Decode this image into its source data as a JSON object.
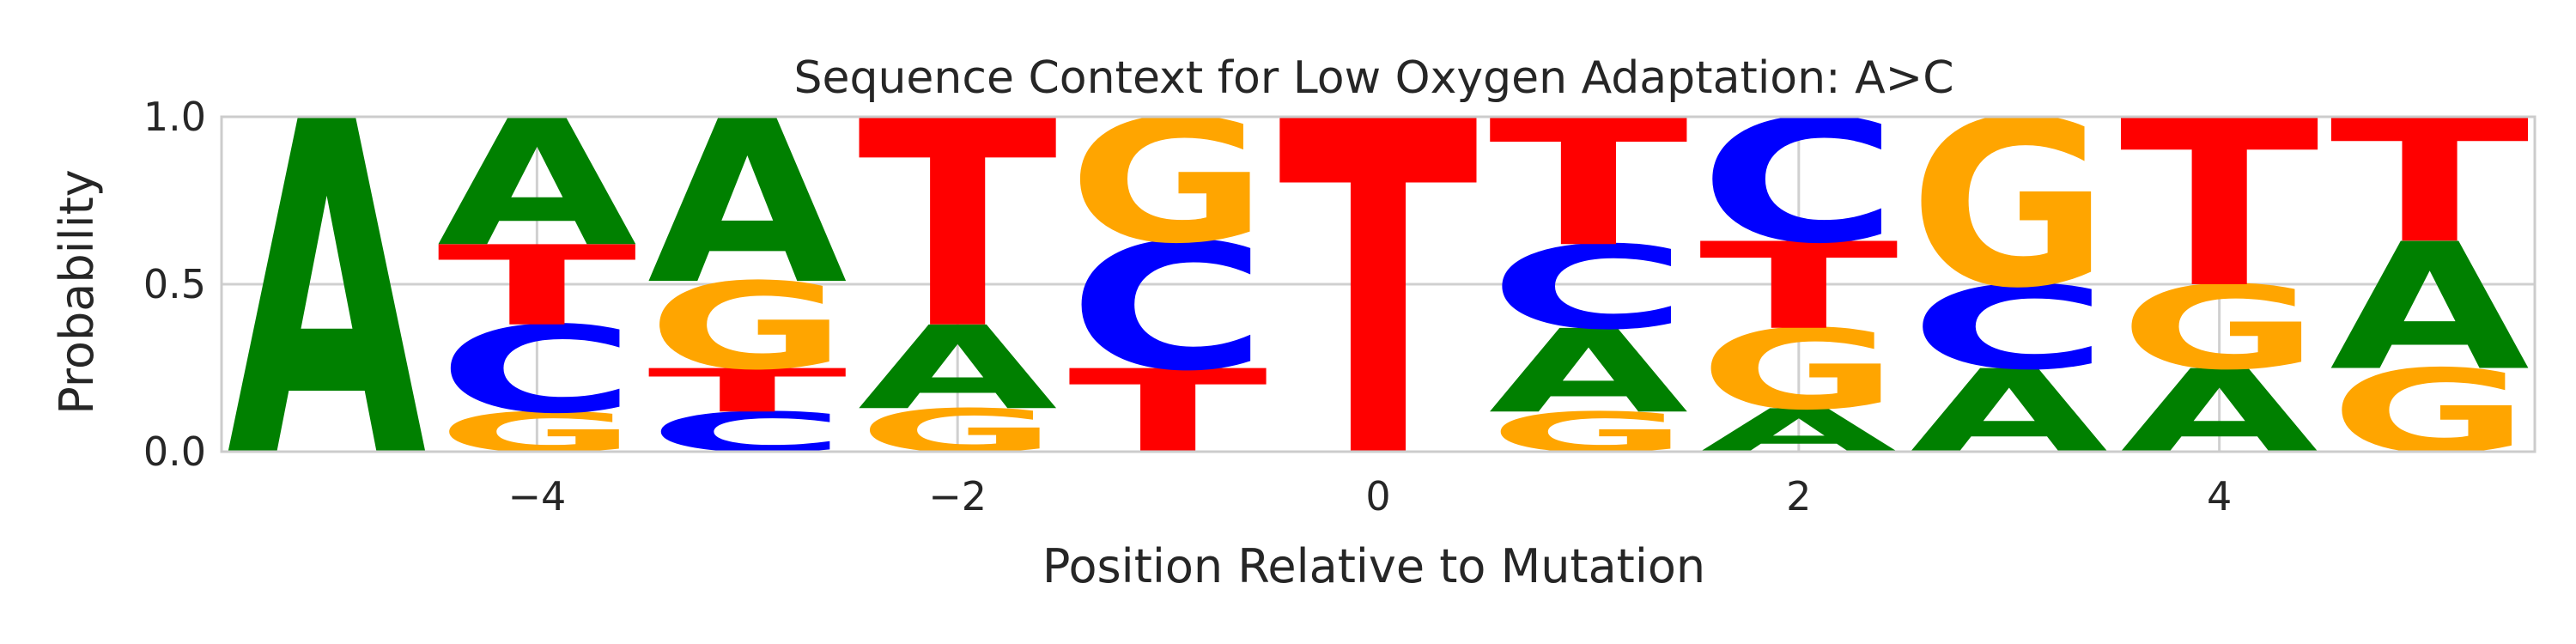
{
  "chart_data": {
    "type": "sequence-logo",
    "title": "Sequence Context for Low Oxygen Adaptation: A>C",
    "xlabel": "Position Relative to Mutation",
    "ylabel": "Probability",
    "ylim": [
      0,
      1
    ],
    "xlim": [
      -5.5,
      5.5
    ],
    "xticks": [
      -4,
      -2,
      0,
      2,
      4
    ],
    "xtick_labels": [
      "−4",
      "−2",
      "0",
      "2",
      "4"
    ],
    "yticks": [
      0,
      0.5,
      1
    ],
    "ytick_labels": [
      "0.0",
      "0.5",
      "1.0"
    ],
    "grid": true,
    "colors": {
      "A": "#008000",
      "C": "#0000ff",
      "G": "#ffa500",
      "T": "#ff0000"
    },
    "positions": [
      {
        "x": -5,
        "stack": [
          {
            "base": "A",
            "p": 1.0
          }
        ]
      },
      {
        "x": -4,
        "stack": [
          {
            "base": "G",
            "p": 0.12
          },
          {
            "base": "C",
            "p": 0.26
          },
          {
            "base": "T",
            "p": 0.24
          },
          {
            "base": "A",
            "p": 0.38
          }
        ]
      },
      {
        "x": -3,
        "stack": [
          {
            "base": "C",
            "p": 0.12
          },
          {
            "base": "T",
            "p": 0.13
          },
          {
            "base": "G",
            "p": 0.26
          },
          {
            "base": "A",
            "p": 0.49
          }
        ]
      },
      {
        "x": -2,
        "stack": [
          {
            "base": "G",
            "p": 0.13
          },
          {
            "base": "A",
            "p": 0.25
          },
          {
            "base": "T",
            "p": 0.62
          }
        ]
      },
      {
        "x": -1,
        "stack": [
          {
            "base": "T",
            "p": 0.25
          },
          {
            "base": "C",
            "p": 0.38
          },
          {
            "base": "G",
            "p": 0.37
          }
        ]
      },
      {
        "x": 0,
        "stack": [
          {
            "base": "T",
            "p": 1.0
          }
        ]
      },
      {
        "x": 1,
        "stack": [
          {
            "base": "G",
            "p": 0.12
          },
          {
            "base": "A",
            "p": 0.25
          },
          {
            "base": "C",
            "p": 0.25
          },
          {
            "base": "T",
            "p": 0.38
          }
        ]
      },
      {
        "x": 2,
        "stack": [
          {
            "base": "A",
            "p": 0.13
          },
          {
            "base": "G",
            "p": 0.24
          },
          {
            "base": "T",
            "p": 0.26
          },
          {
            "base": "C",
            "p": 0.37
          }
        ]
      },
      {
        "x": 3,
        "stack": [
          {
            "base": "A",
            "p": 0.25
          },
          {
            "base": "C",
            "p": 0.25
          },
          {
            "base": "G",
            "p": 0.5
          }
        ]
      },
      {
        "x": 4,
        "stack": [
          {
            "base": "A",
            "p": 0.25
          },
          {
            "base": "G",
            "p": 0.25
          },
          {
            "base": "T",
            "p": 0.5
          }
        ]
      },
      {
        "x": 5,
        "stack": [
          {
            "base": "G",
            "p": 0.25
          },
          {
            "base": "A",
            "p": 0.38
          },
          {
            "base": "T",
            "p": 0.37
          }
        ]
      }
    ]
  }
}
